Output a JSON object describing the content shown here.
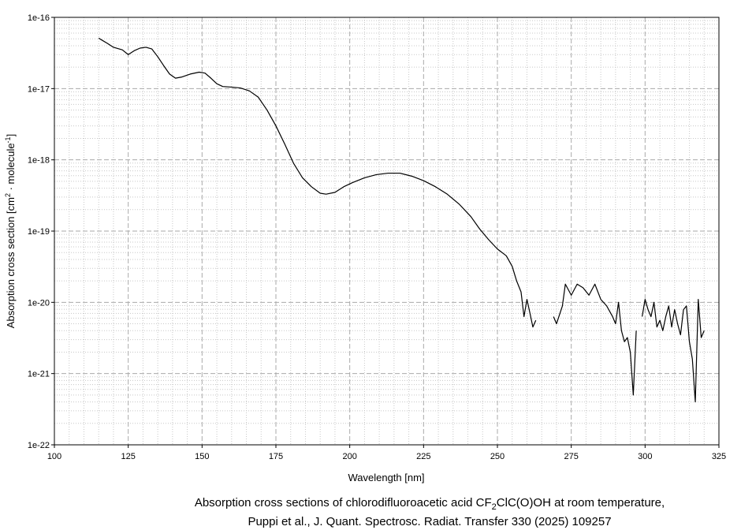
{
  "chart_data": {
    "type": "line",
    "xlabel": "Wavelength [nm]",
    "ylabel_parts": [
      "Absorption cross section [cm",
      "2",
      " · molecule",
      "-1",
      "]"
    ],
    "caption_line1_parts": [
      "Absorption cross sections of chlorodifluoroacetic acid CF",
      "2",
      "ClC(O)OH at room temperature,"
    ],
    "caption_line2": "Puppi et al., J. Quant. Spectrosc. Radiat. Transfer 330 (2025) 109257",
    "yscale": "log",
    "grid": true,
    "minor_grid": true,
    "xlim": [
      100,
      325
    ],
    "xticks": [
      100,
      125,
      150,
      175,
      200,
      225,
      250,
      275,
      300,
      325
    ],
    "ylim": [
      1e-22,
      1e-16
    ],
    "yticks": [
      {
        "value": 1e-22,
        "label": "1e-22"
      },
      {
        "value": 1e-21,
        "label": "1e-21"
      },
      {
        "value": 1e-20,
        "label": "1e-20"
      },
      {
        "value": 1e-19,
        "label": "1e-19"
      },
      {
        "value": 1e-18,
        "label": "1e-18"
      },
      {
        "value": 1e-17,
        "label": "1e-17"
      },
      {
        "value": 1e-16,
        "label": "1e-16"
      }
    ],
    "x": [
      115,
      118,
      120,
      123,
      125,
      127,
      129,
      131,
      133,
      135,
      137,
      139,
      141,
      143,
      146,
      149,
      151,
      153,
      155,
      157,
      160,
      163,
      166,
      169,
      172,
      175,
      178,
      181,
      184,
      187,
      190,
      192,
      195,
      198,
      201,
      205,
      209,
      213,
      217,
      221,
      225,
      229,
      233,
      237,
      241,
      244,
      247,
      250,
      253,
      255,
      256.5,
      258,
      259,
      260,
      261,
      262,
      263,
      266,
      269,
      270,
      272,
      273,
      275,
      277,
      279,
      281,
      283,
      285,
      287,
      289,
      290,
      291,
      292,
      293,
      294,
      295,
      296,
      297,
      298,
      299,
      300,
      301,
      302,
      303,
      304,
      305,
      306,
      307,
      308,
      309,
      310,
      311,
      312,
      313,
      314,
      315,
      316,
      317,
      318,
      319,
      320
    ],
    "series": [
      {
        "color": "#000000",
        "values": [
          5.1e-17,
          4.3e-17,
          3.8e-17,
          3.5e-17,
          3e-17,
          3.4e-17,
          3.7e-17,
          3.8e-17,
          3.6e-17,
          2.8e-17,
          2.1e-17,
          1.6e-17,
          1.4e-17,
          1.45e-17,
          1.6e-17,
          1.7e-17,
          1.65e-17,
          1.4e-17,
          1.17e-17,
          1.07e-17,
          1.05e-17,
          1.02e-17,
          9.3e-18,
          7.6e-18,
          5e-18,
          3e-18,
          1.66e-18,
          8.9e-19,
          5.6e-19,
          4.2e-19,
          3.4e-19,
          3.3e-19,
          3.5e-19,
          4.2e-19,
          4.8e-19,
          5.6e-19,
          6.2e-19,
          6.5e-19,
          6.5e-19,
          5.9e-19,
          5.1e-19,
          4.2e-19,
          3.3e-19,
          2.4e-19,
          1.6e-19,
          1.07e-19,
          7.6e-20,
          5.6e-20,
          4.5e-20,
          3.2e-20,
          2e-20,
          1.4e-20,
          6.3e-21,
          1.1e-20,
          7.1e-21,
          4.5e-21,
          5.6e-21,
          null,
          6.3e-21,
          5e-21,
          8.9e-21,
          1.8e-20,
          1.26e-20,
          1.8e-20,
          1.6e-20,
          1.26e-20,
          1.8e-20,
          1.1e-20,
          8.9e-21,
          6.3e-21,
          5e-21,
          1e-20,
          4e-21,
          2.8e-21,
          3.2e-21,
          2e-21,
          5e-22,
          4e-21,
          null,
          6.3e-21,
          1.1e-20,
          7.9e-21,
          6.3e-21,
          1e-20,
          4.5e-21,
          5.6e-21,
          4e-21,
          6.3e-21,
          8.9e-21,
          4.5e-21,
          7.9e-21,
          5e-21,
          3.5e-21,
          7.9e-21,
          8.9e-21,
          2.8e-21,
          1.6e-21,
          4e-22,
          1.1e-20,
          3.2e-21,
          4e-21
        ]
      }
    ]
  }
}
